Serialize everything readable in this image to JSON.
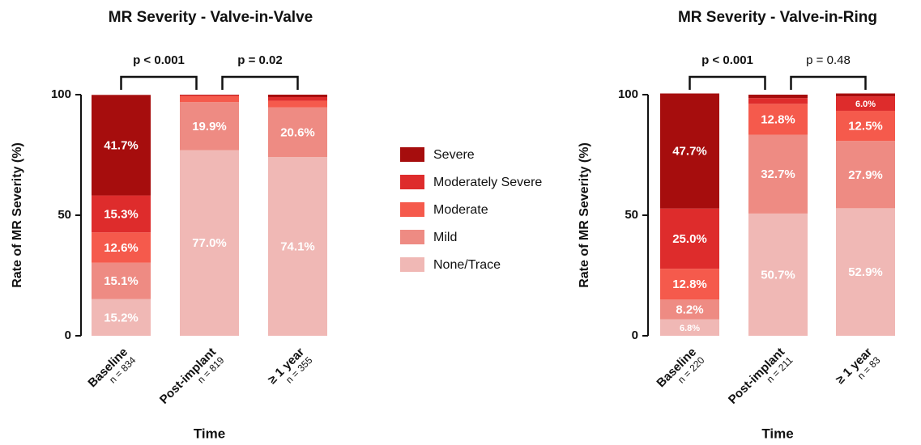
{
  "chart_data": [
    {
      "type": "stacked-bar",
      "title": "MR Severity - Valve-in-Valve",
      "xlabel": "Time",
      "ylabel": "Rate of MR Severity (%)",
      "categories": [
        "Baseline",
        "Post-implant",
        "≥ 1 year"
      ],
      "category_notes": [
        "n = 834",
        "n = 819",
        "n = 355"
      ],
      "ylim": [
        0,
        100
      ],
      "yticks": [
        0,
        50,
        100
      ],
      "series": [
        {
          "name": "None/Trace",
          "color": "#f0b8b5",
          "values": [
            15.2,
            77.0,
            74.1
          ],
          "value_labels": [
            "15.2%",
            "77.0%",
            "74.1%"
          ]
        },
        {
          "name": "Mild",
          "color": "#ee8b83",
          "values": [
            15.1,
            19.9,
            20.6
          ],
          "value_labels": [
            "15.1%",
            "19.9%",
            "20.6%"
          ]
        },
        {
          "name": "Moderate",
          "color": "#f55a4c",
          "values": [
            12.6,
            2.6,
            2.8
          ],
          "value_labels": [
            "12.6%",
            null,
            null
          ]
        },
        {
          "name": "Moderately Severe",
          "color": "#de2c2c",
          "values": [
            15.3,
            0.3,
            1.5
          ],
          "value_labels": [
            "15.3%",
            null,
            null
          ]
        },
        {
          "name": "Severe",
          "color": "#a60d0d",
          "values": [
            41.7,
            0.2,
            1.0
          ],
          "value_labels": [
            "41.7%",
            null,
            null
          ]
        }
      ],
      "annotations": [
        {
          "text": "p < 0.001",
          "between": [
            0,
            1
          ],
          "bold": true
        },
        {
          "text": "p = 0.02",
          "between": [
            1,
            2
          ],
          "bold": true
        }
      ]
    },
    {
      "type": "stacked-bar",
      "title": "MR Severity - Valve-in-Ring",
      "xlabel": "Time",
      "ylabel": "Rate of MR Severity (%)",
      "categories": [
        "Baseline",
        "Post-implant",
        "≥ 1 year"
      ],
      "category_notes": [
        "n = 220",
        "n = 211",
        "n = 83"
      ],
      "ylim": [
        0,
        100
      ],
      "yticks": [
        0,
        50,
        100
      ],
      "series": [
        {
          "values": [
            6.8,
            50.7,
            52.9
          ],
          "value_labels": [
            "6.8%",
            "50.7%",
            "52.9%"
          ]
        },
        {
          "values": [
            8.2,
            32.7,
            27.9
          ],
          "value_labels": [
            "8.2%",
            "32.7%",
            "27.9%"
          ]
        },
        {
          "values": [
            12.8,
            12.8,
            12.5
          ],
          "value_labels": [
            "12.8%",
            "12.8%",
            "12.5%"
          ]
        },
        {
          "values": [
            25.0,
            2.4,
            6.0
          ],
          "value_labels": [
            "25.0%",
            null,
            "6.0%"
          ]
        },
        {
          "values": [
            47.7,
            1.4,
            1.2
          ],
          "value_labels": [
            "47.7%",
            null,
            null
          ]
        }
      ],
      "annotations": [
        {
          "text": "p < 0.001",
          "between": [
            0,
            1
          ],
          "bold": true
        },
        {
          "text": "p = 0.48",
          "between": [
            1,
            2
          ],
          "bold": false
        }
      ]
    }
  ]
}
